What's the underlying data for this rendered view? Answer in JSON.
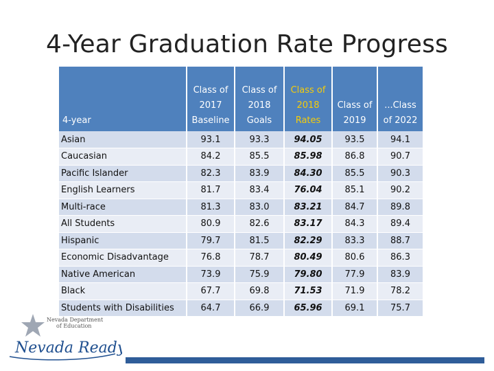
{
  "title": "4-Year Graduation Rate Progress",
  "table": {
    "headers": [
      [
        "4-year"
      ],
      [
        "Class of",
        "2017",
        "Baseline"
      ],
      [
        "Class of",
        "2018",
        "Goals"
      ],
      [
        "Class of",
        "2018",
        "Rates"
      ],
      [
        "Class of",
        "2019"
      ],
      [
        "...Class",
        "of 2022"
      ]
    ],
    "rows": [
      [
        "Asian",
        "93.1",
        "93.3",
        "94.05",
        "93.5",
        "94.1"
      ],
      [
        "Caucasian",
        "84.2",
        "85.5",
        "85.98",
        "86.8",
        "90.7"
      ],
      [
        "Pacific Islander",
        "82.3",
        "83.9",
        "84.30",
        "85.5",
        "90.3"
      ],
      [
        "English Learners",
        "81.7",
        "83.4",
        "76.04",
        "85.1",
        "90.2"
      ],
      [
        "Multi-race",
        "81.3",
        "83.0",
        "83.21",
        "84.7",
        "89.8"
      ],
      [
        "All Students",
        "80.9",
        "82.6",
        "83.17",
        "84.3",
        "89.4"
      ],
      [
        "Hispanic",
        "79.7",
        "81.5",
        "82.29",
        "83.3",
        "88.7"
      ],
      [
        "Economic Disadvantage",
        "76.8",
        "78.7",
        "80.49",
        "80.6",
        "86.3"
      ],
      [
        "Native American",
        "73.9",
        "75.9",
        "79.80",
        "77.9",
        "83.9"
      ],
      [
        "Black",
        "67.7",
        "69.8",
        "71.53",
        "71.9",
        "78.2"
      ],
      [
        "Students with Disabilities",
        "64.7",
        "66.9",
        "65.96",
        "69.1",
        "75.7"
      ]
    ]
  },
  "logo": {
    "org_line1": "Nevada Department",
    "org_line2": "of Education",
    "wordmark": "Nevada Ready!"
  },
  "colors": {
    "header_bg": "#4f81bd",
    "highlight_header": "#f5cc0a",
    "row_odd": "#d3dcec",
    "row_even": "#e9edf5",
    "bar": "#2f5d99"
  }
}
